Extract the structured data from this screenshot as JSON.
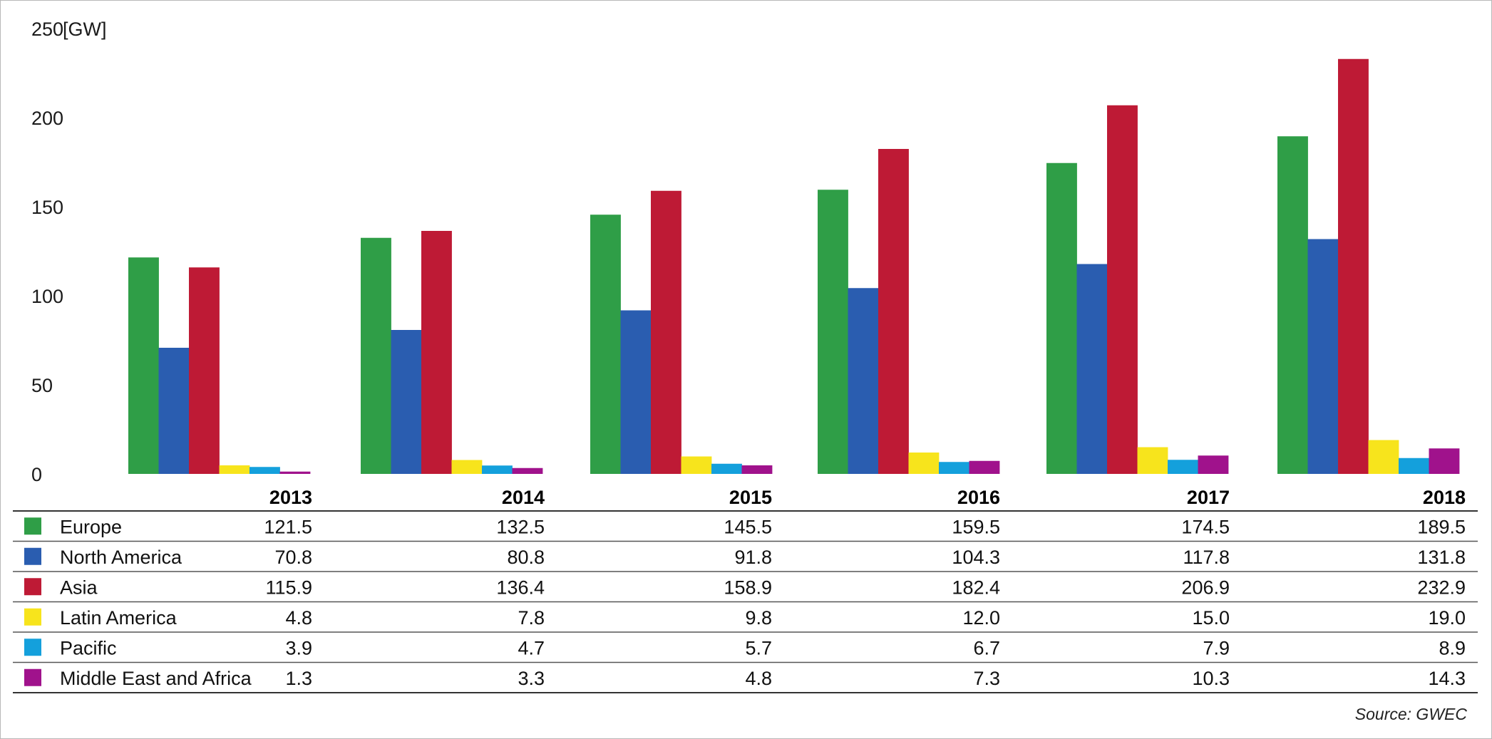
{
  "chart_data": {
    "type": "bar",
    "ylabel": "[GW]",
    "ylim": [
      0,
      250
    ],
    "yticks": [
      0,
      50,
      100,
      150,
      200,
      250
    ],
    "grid": false,
    "categories": [
      "2013",
      "2014",
      "2015",
      "2016",
      "2017",
      "2018"
    ],
    "series": [
      {
        "name": "Europe",
        "color": "#2f9e47",
        "values": [
          121.5,
          132.5,
          145.5,
          159.5,
          174.5,
          189.5
        ],
        "labels": [
          "121.5",
          "132.5",
          "145.5",
          "159.5",
          "174.5",
          "189.5"
        ]
      },
      {
        "name": "North America",
        "color": "#2a5db0",
        "values": [
          70.8,
          80.8,
          91.8,
          104.3,
          117.8,
          131.8
        ],
        "labels": [
          "70.8",
          "80.8",
          "91.8",
          "104.3",
          "117.8",
          "131.8"
        ]
      },
      {
        "name": "Asia",
        "color": "#be1a35",
        "values": [
          115.9,
          136.4,
          158.9,
          182.4,
          206.9,
          232.9
        ],
        "labels": [
          "115.9",
          "136.4",
          "158.9",
          "182.4",
          "206.9",
          "232.9"
        ]
      },
      {
        "name": "Latin America",
        "color": "#f7e41c",
        "values": [
          4.8,
          7.8,
          9.8,
          12.0,
          15.0,
          19.0
        ],
        "labels": [
          "4.8",
          "7.8",
          "9.8",
          "12.0",
          "15.0",
          "19.0"
        ]
      },
      {
        "name": "Pacific",
        "color": "#14a0dc",
        "values": [
          3.9,
          4.7,
          5.7,
          6.7,
          7.9,
          8.9
        ],
        "labels": [
          "3.9",
          "4.7",
          "5.7",
          "6.7",
          "7.9",
          "8.9"
        ]
      },
      {
        "name": "Middle East and Africa",
        "color": "#a0128c",
        "values": [
          1.3,
          3.3,
          4.8,
          7.3,
          10.3,
          14.3
        ],
        "labels": [
          "1.3",
          "3.3",
          "4.8",
          "7.3",
          "10.3",
          "14.3"
        ]
      }
    ],
    "source": "Source: GWEC"
  }
}
